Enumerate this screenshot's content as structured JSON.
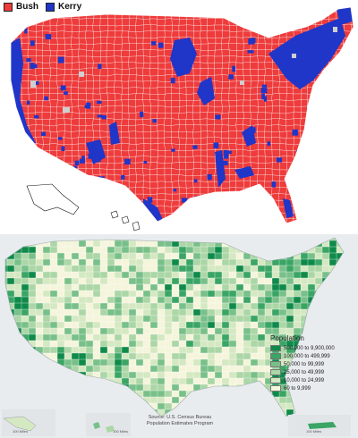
{
  "election_map": {
    "legend": [
      {
        "label": "Bush",
        "color": "#ee3b3b"
      },
      {
        "label": "Kerry",
        "color": "#1f36c8"
      }
    ],
    "colors": {
      "bush": "#ee3b3b",
      "kerry": "#1f36c8",
      "no_data": "#cfcfcf",
      "border": "#ffffff"
    }
  },
  "population_map": {
    "legend_title": "Population",
    "legend": [
      {
        "label": "500,000 to 9,900,000",
        "color": "#0f8a4a"
      },
      {
        "label": "100,000 to 499,999",
        "color": "#3aa565"
      },
      {
        "label": "50,000 to 99,999",
        "color": "#78c08a"
      },
      {
        "label": "25,000 to 49,999",
        "color": "#abd6a6"
      },
      {
        "label": "10,000 to 24,999",
        "color": "#d4e8c2"
      },
      {
        "label": "60 to 9,999",
        "color": "#f5f5dc"
      }
    ],
    "source_line1": "Source: U.S. Census Bureau",
    "source_line2": "Population Estimates Program",
    "scale_labels": [
      "100 Miles",
      "100 Miles",
      "100 Miles"
    ]
  }
}
